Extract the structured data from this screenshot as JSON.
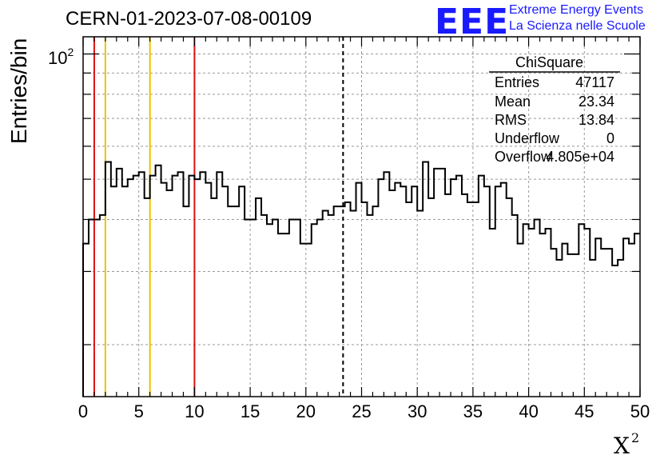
{
  "header": {
    "run_title": "CERN-01-2023-07-08-00109",
    "logo_text": "EEE",
    "logo_line1": "Extreme Energy Events",
    "logo_line2": "La Scienza nelle Scuole",
    "logo_color": "#1a1aff"
  },
  "stats_box": {
    "title": "ChiSquare",
    "rows": [
      {
        "label": "Entries",
        "value": "47117"
      },
      {
        "label": "Mean",
        "value": "23.34"
      },
      {
        "label": "RMS",
        "value": "13.84"
      },
      {
        "label": "Underflow",
        "value": "0"
      },
      {
        "label": "Overflow",
        "value": "4.805e+04"
      }
    ]
  },
  "chart_data": {
    "type": "histogram",
    "xlabel": "X",
    "xlabel_superscript": "2",
    "ylabel": "Entries/bin",
    "xlim": [
      0,
      50
    ],
    "ylim_log": [
      15,
      110
    ],
    "log_y": true,
    "grid": true,
    "x_ticks": [
      "0",
      "5",
      "10",
      "15",
      "20",
      "25",
      "30",
      "35",
      "40",
      "45",
      "50"
    ],
    "y_tick_label": "10",
    "y_tick_label_exp": "2",
    "bin_width": 0.5,
    "values": [
      35,
      40,
      40,
      41,
      55,
      48,
      53,
      48,
      50,
      51,
      52,
      45,
      51,
      54,
      49,
      47,
      51,
      52,
      43,
      51,
      50,
      52,
      49,
      45,
      52,
      48,
      43,
      43,
      48,
      40,
      40,
      45,
      41,
      39,
      40,
      37,
      37,
      40,
      40,
      35,
      35,
      39,
      40,
      42,
      41,
      43,
      43,
      44,
      42,
      49,
      44,
      41,
      43,
      50,
      52,
      47,
      49,
      48,
      44,
      48,
      42,
      55,
      45,
      53,
      53,
      46,
      50,
      51,
      46,
      44,
      44,
      51,
      48,
      38,
      48,
      49,
      45,
      41,
      35,
      39,
      38,
      40,
      37,
      38,
      34,
      32,
      35,
      33,
      33,
      39,
      38,
      32,
      36,
      34,
      34,
      31,
      32,
      36,
      35,
      37
    ],
    "vertical_lines": [
      {
        "x": 1,
        "color": "#dd1111",
        "style": "solid"
      },
      {
        "x": 2,
        "color": "#f0c000",
        "style": "solid"
      },
      {
        "x": 6,
        "color": "#f0c000",
        "style": "solid"
      },
      {
        "x": 10,
        "color": "#dd1111",
        "style": "solid"
      },
      {
        "x": 23.34,
        "color": "#000000",
        "style": "dashed"
      }
    ]
  }
}
